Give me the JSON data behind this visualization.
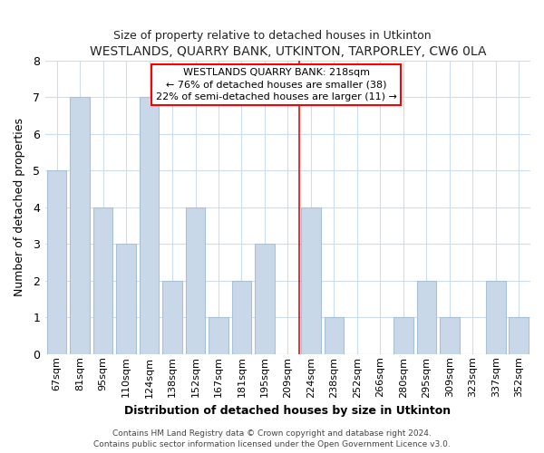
{
  "title": "WESTLANDS, QUARRY BANK, UTKINTON, TARPORLEY, CW6 0LA",
  "subtitle": "Size of property relative to detached houses in Utkinton",
  "xlabel": "Distribution of detached houses by size in Utkinton",
  "ylabel": "Number of detached properties",
  "bar_labels": [
    "67sqm",
    "81sqm",
    "95sqm",
    "110sqm",
    "124sqm",
    "138sqm",
    "152sqm",
    "167sqm",
    "181sqm",
    "195sqm",
    "209sqm",
    "224sqm",
    "238sqm",
    "252sqm",
    "266sqm",
    "280sqm",
    "295sqm",
    "309sqm",
    "323sqm",
    "337sqm",
    "352sqm"
  ],
  "bar_values": [
    5,
    7,
    4,
    3,
    7,
    2,
    4,
    1,
    2,
    3,
    0,
    4,
    1,
    0,
    0,
    1,
    2,
    1,
    0,
    2,
    1
  ],
  "bar_color": "#c8d8e8",
  "bar_edge_color": "#a8c0d8",
  "ylim": [
    0,
    8
  ],
  "yticks": [
    0,
    1,
    2,
    3,
    4,
    5,
    6,
    7,
    8
  ],
  "red_line_x": 10.5,
  "annotation_title": "WESTLANDS QUARRY BANK: 218sqm",
  "annotation_line1": "← 76% of detached houses are smaller (38)",
  "annotation_line2": "22% of semi-detached houses are larger (11) →",
  "footer_line1": "Contains HM Land Registry data © Crown copyright and database right 2024.",
  "footer_line2": "Contains public sector information licensed under the Open Government Licence v3.0.",
  "background_color": "#ffffff",
  "grid_color": "#ccddee"
}
